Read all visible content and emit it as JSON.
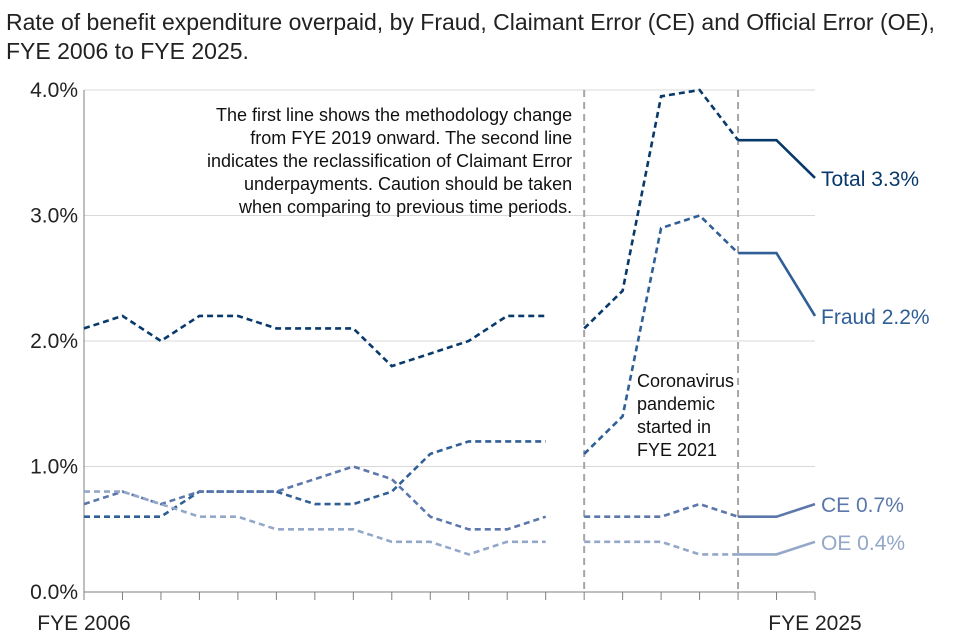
{
  "chart_data": {
    "type": "line",
    "title": "Rate of benefit expenditure overpaid, by Fraud, Claimant Error (CE) and Official Error (OE), FYE 2006 to FYE 2025.",
    "xlabel": "",
    "ylabel": "",
    "x_tick_labels": [
      "FYE 2006",
      "FYE 2025"
    ],
    "y_tick_labels": [
      "4.0%",
      "3.0%",
      "2.0%",
      "1.0%",
      "0.0%"
    ],
    "ylim": [
      0,
      4.0
    ],
    "grid": true,
    "break_years": [
      2019,
      2023
    ],
    "series": [
      {
        "name": "Total",
        "end_label": "Total 3.3%",
        "color": "#08396b",
        "points": [
          {
            "year": 2006,
            "value": 2.1
          },
          {
            "year": 2007,
            "value": 2.2
          },
          {
            "year": 2008,
            "value": 2.0
          },
          {
            "year": 2009,
            "value": 2.2
          },
          {
            "year": 2010,
            "value": 2.2
          },
          {
            "year": 2011,
            "value": 2.1
          },
          {
            "year": 2012,
            "value": 2.1
          },
          {
            "year": 2013,
            "value": 2.1
          },
          {
            "year": 2014,
            "value": 1.8
          },
          {
            "year": 2015,
            "value": 1.9
          },
          {
            "year": 2016,
            "value": 2.0
          },
          {
            "year": 2017,
            "value": 2.2
          },
          {
            "year": 2018,
            "value": 2.2
          },
          {
            "year": 2019,
            "value": 2.1
          },
          {
            "year": 2020,
            "value": 2.4
          },
          {
            "year": 2021,
            "value": 3.95
          },
          {
            "year": 2022,
            "value": 4.0
          },
          {
            "year": 2023,
            "value": 3.6
          },
          {
            "year": 2024,
            "value": 3.6
          },
          {
            "year": 2025,
            "value": 3.3
          }
        ]
      },
      {
        "name": "Fraud",
        "end_label": "Fraud 2.2%",
        "color": "#2f5f96",
        "points": [
          {
            "year": 2006,
            "value": 0.6
          },
          {
            "year": 2007,
            "value": 0.6
          },
          {
            "year": 2008,
            "value": 0.6
          },
          {
            "year": 2009,
            "value": 0.8
          },
          {
            "year": 2010,
            "value": 0.8
          },
          {
            "year": 2011,
            "value": 0.8
          },
          {
            "year": 2012,
            "value": 0.7
          },
          {
            "year": 2013,
            "value": 0.7
          },
          {
            "year": 2014,
            "value": 0.8
          },
          {
            "year": 2015,
            "value": 1.1
          },
          {
            "year": 2016,
            "value": 1.2
          },
          {
            "year": 2017,
            "value": 1.2
          },
          {
            "year": 2018,
            "value": 1.2
          },
          {
            "year": 2019,
            "value": 1.1
          },
          {
            "year": 2020,
            "value": 1.4
          },
          {
            "year": 2021,
            "value": 2.9
          },
          {
            "year": 2022,
            "value": 3.0
          },
          {
            "year": 2023,
            "value": 2.7
          },
          {
            "year": 2024,
            "value": 2.7
          },
          {
            "year": 2025,
            "value": 2.2
          }
        ]
      },
      {
        "name": "CE",
        "end_label": "CE 0.7%",
        "color": "#5b77ab",
        "points": [
          {
            "year": 2006,
            "value": 0.7
          },
          {
            "year": 2007,
            "value": 0.8
          },
          {
            "year": 2008,
            "value": 0.7
          },
          {
            "year": 2009,
            "value": 0.8
          },
          {
            "year": 2010,
            "value": 0.8
          },
          {
            "year": 2011,
            "value": 0.8
          },
          {
            "year": 2012,
            "value": 0.9
          },
          {
            "year": 2013,
            "value": 1.0
          },
          {
            "year": 2014,
            "value": 0.9
          },
          {
            "year": 2015,
            "value": 0.6
          },
          {
            "year": 2016,
            "value": 0.5
          },
          {
            "year": 2017,
            "value": 0.5
          },
          {
            "year": 2018,
            "value": 0.6
          },
          {
            "year": 2019,
            "value": 0.6
          },
          {
            "year": 2020,
            "value": 0.6
          },
          {
            "year": 2021,
            "value": 0.6
          },
          {
            "year": 2022,
            "value": 0.7
          },
          {
            "year": 2023,
            "value": 0.6
          },
          {
            "year": 2024,
            "value": 0.6
          },
          {
            "year": 2025,
            "value": 0.7
          }
        ]
      },
      {
        "name": "OE",
        "end_label": "OE 0.4%",
        "color": "#93a7c9",
        "points": [
          {
            "year": 2006,
            "value": 0.8
          },
          {
            "year": 2007,
            "value": 0.8
          },
          {
            "year": 2008,
            "value": 0.7
          },
          {
            "year": 2009,
            "value": 0.6
          },
          {
            "year": 2010,
            "value": 0.6
          },
          {
            "year": 2011,
            "value": 0.5
          },
          {
            "year": 2012,
            "value": 0.5
          },
          {
            "year": 2013,
            "value": 0.5
          },
          {
            "year": 2014,
            "value": 0.4
          },
          {
            "year": 2015,
            "value": 0.4
          },
          {
            "year": 2016,
            "value": 0.3
          },
          {
            "year": 2017,
            "value": 0.4
          },
          {
            "year": 2018,
            "value": 0.4
          },
          {
            "year": 2019,
            "value": 0.4
          },
          {
            "year": 2020,
            "value": 0.4
          },
          {
            "year": 2021,
            "value": 0.4
          },
          {
            "year": 2022,
            "value": 0.3
          },
          {
            "year": 2023,
            "value": 0.3
          },
          {
            "year": 2024,
            "value": 0.3
          },
          {
            "year": 2025,
            "value": 0.4
          }
        ]
      }
    ],
    "annotations": {
      "methodology_note": [
        "The first line shows the methodology change",
        "from FYE 2019 onward. The second line",
        "indicates the reclassification of Claimant Error",
        "underpayments. Caution should be taken",
        "when comparing to previous time periods."
      ],
      "pandemic_note": [
        "Coronavirus",
        "pandemic",
        "started in",
        "FYE 2021"
      ]
    }
  }
}
